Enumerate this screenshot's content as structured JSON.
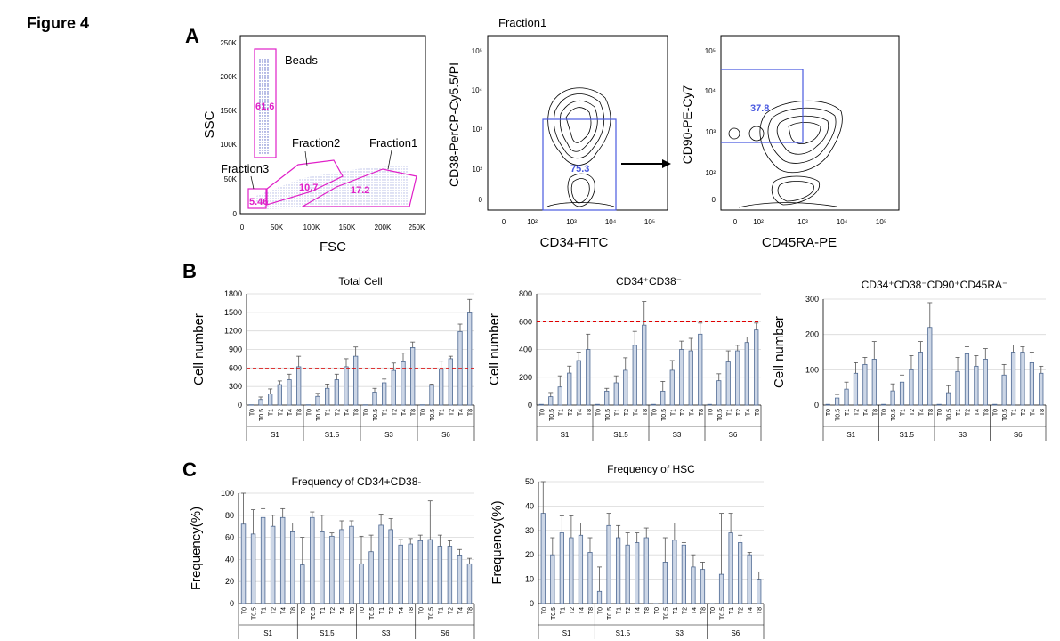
{
  "figure_title": "Figure 4",
  "panel_labels": [
    "A",
    "B",
    "C"
  ],
  "colors": {
    "bar_fill": "#ccd6e6",
    "bar_stroke": "#4f6a94",
    "gate_magenta": "#e020c8",
    "gate_blue": "#4a5ae0",
    "threshold_red": "#e00000",
    "grid": "#d9d9d9",
    "dots": "#2030b0"
  },
  "panelA": {
    "scatter": {
      "xlabel": "FSC",
      "ylabel": "SSC",
      "xticks": [
        "0",
        "50K",
        "100K",
        "150K",
        "200K",
        "250K"
      ],
      "yticks": [
        "0",
        "50K",
        "100K",
        "150K",
        "200K",
        "250K"
      ],
      "gate_labels": [
        "Beads",
        "Fraction2",
        "Fraction1",
        "Fraction3"
      ],
      "gate_values": [
        "61.6",
        "10.7",
        "17.2",
        "5.46"
      ]
    },
    "contour1": {
      "title": "Fraction1",
      "xlabel": "CD34-FITC",
      "ylabel": "CD38-PerCP-Cy5.5/PI",
      "xticks": [
        "0",
        "10²",
        "10³",
        "10⁴",
        "10⁵"
      ],
      "yticks": [
        "0",
        "10²",
        "10³",
        "10⁴",
        "10⁵"
      ],
      "gate_value": "75.3"
    },
    "contour2": {
      "xlabel": "CD45RA-PE",
      "ylabel": "CD90-PE-Cy7",
      "xticks": [
        "0",
        "10²",
        "10³",
        "10⁴",
        "10⁵"
      ],
      "yticks": [
        "0",
        "10²",
        "10³",
        "10⁴",
        "10⁵"
      ],
      "gate_value": "37.8"
    }
  },
  "chart_data": [
    {
      "id": "b1",
      "type": "bar",
      "title": "Total Cell",
      "ylabel": "Cell number",
      "ylim": [
        0,
        1800
      ],
      "yticks": [
        0,
        300,
        600,
        900,
        1200,
        1500,
        1800
      ],
      "threshold": 590,
      "categories": [
        "T0",
        "T0.5",
        "T1",
        "T2",
        "T4",
        "T8",
        "T0",
        "T0.5",
        "T1",
        "T2",
        "T4",
        "T8",
        "T0",
        "T0.5",
        "T1",
        "T2",
        "T4",
        "T8",
        "T0",
        "T0.5",
        "T1",
        "T2",
        "T4",
        "T8"
      ],
      "groups": [
        "S1",
        "S1.5",
        "S3",
        "S6"
      ],
      "values": [
        5,
        90,
        180,
        330,
        410,
        620,
        5,
        140,
        270,
        410,
        620,
        790,
        5,
        210,
        360,
        560,
        700,
        930,
        5,
        320,
        580,
        750,
        1190,
        1490
      ],
      "errors": [
        0,
        40,
        80,
        60,
        90,
        170,
        0,
        50,
        70,
        90,
        130,
        150,
        0,
        60,
        60,
        120,
        140,
        90,
        0,
        20,
        130,
        40,
        120,
        220
      ]
    },
    {
      "id": "b2",
      "type": "bar",
      "title": "CD34⁺CD38⁻",
      "ylabel": "Cell number",
      "ylim": [
        0,
        800
      ],
      "yticks": [
        0,
        200,
        400,
        600,
        800
      ],
      "threshold": 600,
      "categories": [
        "T0",
        "T0.5",
        "T1",
        "T2",
        "T4",
        "T8",
        "T0",
        "T0.5",
        "T1",
        "T2",
        "T4",
        "T8",
        "T0",
        "T0.5",
        "T1",
        "T2",
        "T4",
        "T8",
        "T0",
        "T0.5",
        "T1",
        "T2",
        "T4",
        "T8"
      ],
      "groups": [
        "S1",
        "S1.5",
        "S3",
        "S6"
      ],
      "values": [
        5,
        60,
        130,
        230,
        320,
        400,
        5,
        100,
        160,
        250,
        430,
        575,
        5,
        100,
        250,
        400,
        390,
        510,
        5,
        175,
        310,
        390,
        450,
        540
      ],
      "errors": [
        0,
        30,
        80,
        50,
        60,
        110,
        0,
        20,
        50,
        90,
        100,
        170,
        0,
        70,
        70,
        60,
        90,
        80,
        0,
        50,
        80,
        40,
        40,
        50
      ]
    },
    {
      "id": "b3",
      "type": "bar",
      "title": "CD34⁺CD38⁻CD90⁺CD45RA⁻",
      "ylabel": "Cell number",
      "ylim": [
        0,
        300
      ],
      "yticks": [
        0,
        100,
        200,
        300
      ],
      "categories": [
        "T0",
        "T0.5",
        "T1",
        "T2",
        "T4",
        "T8",
        "T0",
        "T0.5",
        "T1",
        "T2",
        "T4",
        "T8",
        "T0",
        "T0.5",
        "T1",
        "T2",
        "T4",
        "T8",
        "T0",
        "T0.5",
        "T1",
        "T2",
        "T4",
        "T8"
      ],
      "groups": [
        "S1",
        "S1.5",
        "S3",
        "S6"
      ],
      "values": [
        2,
        20,
        45,
        90,
        115,
        130,
        2,
        40,
        65,
        100,
        150,
        220,
        2,
        35,
        95,
        145,
        110,
        130,
        2,
        85,
        150,
        150,
        120,
        90
      ],
      "errors": [
        0,
        10,
        20,
        30,
        20,
        50,
        0,
        20,
        20,
        40,
        30,
        70,
        0,
        20,
        40,
        20,
        30,
        30,
        0,
        30,
        20,
        15,
        30,
        20
      ]
    },
    {
      "id": "c1",
      "type": "bar",
      "title": "Frequency of CD34+CD38-",
      "ylabel": "Frequency(%)",
      "ylim": [
        0,
        100
      ],
      "yticks": [
        0,
        20,
        40,
        60,
        80,
        100
      ],
      "categories": [
        "T0",
        "T0.5",
        "T1",
        "T2",
        "T4",
        "T8",
        "T0",
        "T0.5",
        "T1",
        "T2",
        "T4",
        "T8",
        "T0",
        "T0.5",
        "T1",
        "T2",
        "T4",
        "T8",
        "T0",
        "T0.5",
        "T1",
        "T2",
        "T4",
        "T8"
      ],
      "groups": [
        "S1",
        "S1.5",
        "S3",
        "S6"
      ],
      "values": [
        72,
        63,
        78,
        70,
        78,
        65,
        35,
        78,
        65,
        61,
        67,
        70,
        36,
        47,
        71,
        67,
        53,
        54,
        57,
        58,
        52,
        52,
        44,
        36
      ],
      "errors": [
        30,
        22,
        8,
        10,
        8,
        8,
        25,
        5,
        15,
        3,
        8,
        5,
        25,
        15,
        10,
        10,
        5,
        5,
        5,
        35,
        10,
        5,
        5,
        5
      ]
    },
    {
      "id": "c2",
      "type": "bar",
      "title": "Frequency of HSC",
      "ylabel": "Frequency(%)",
      "ylim": [
        0,
        50
      ],
      "yticks": [
        0,
        10,
        20,
        30,
        40,
        50
      ],
      "categories": [
        "T0",
        "T0.5",
        "T1",
        "T2",
        "T4",
        "T8",
        "T0",
        "T0.5",
        "T1",
        "T2",
        "T4",
        "T8",
        "T0",
        "T0.5",
        "T1",
        "T2",
        "T4",
        "T8",
        "T0",
        "T0.5",
        "T1",
        "T2",
        "T4",
        "T8"
      ],
      "groups": [
        "S1",
        "S1.5",
        "S3",
        "S6"
      ],
      "values": [
        37,
        20,
        29,
        27,
        28,
        21,
        5,
        32,
        27,
        24,
        25,
        27,
        0,
        17,
        26,
        24,
        15,
        14,
        0,
        12,
        29,
        25,
        20,
        10
      ],
      "errors": [
        13,
        7,
        7,
        9,
        5,
        6,
        10,
        5,
        5,
        5,
        4,
        4,
        0,
        10,
        7,
        1,
        5,
        3,
        0,
        25,
        8,
        3,
        1,
        3
      ]
    }
  ]
}
